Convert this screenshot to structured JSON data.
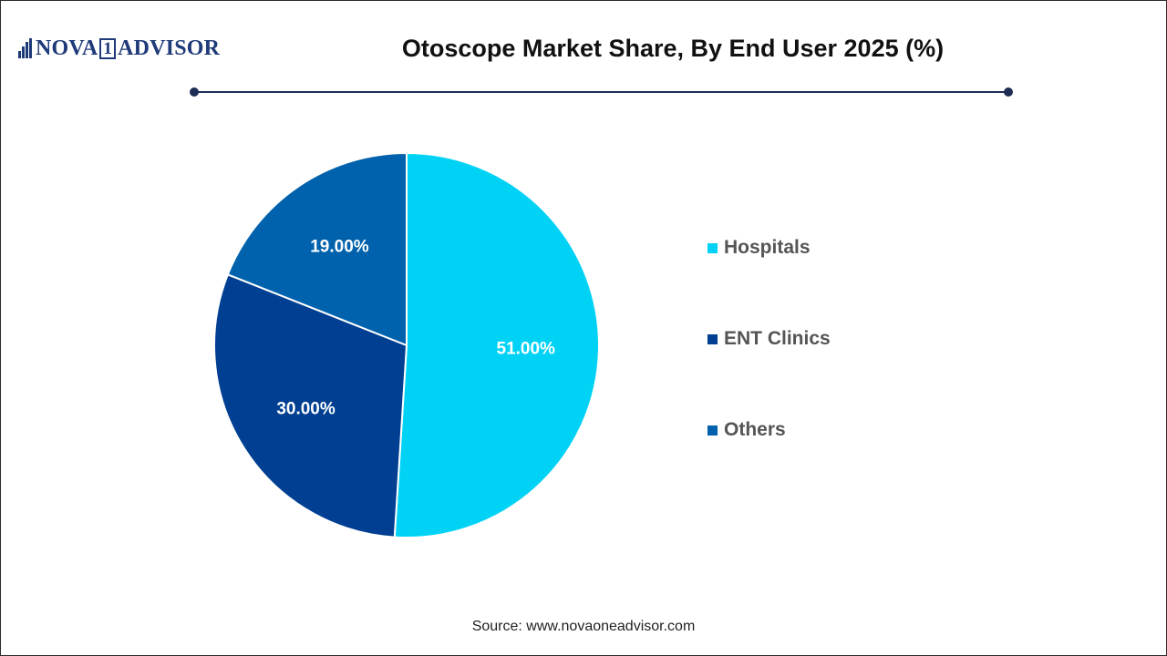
{
  "header": {
    "logo_text_left": "NOVA",
    "logo_text_box": "1",
    "logo_text_right": "ADVISOR",
    "title": "Otoscope Market Share, By End User 2025 (%)"
  },
  "chart_data": {
    "type": "pie",
    "title": "Otoscope Market Share, By End User 2025 (%)",
    "categories": [
      "Hospitals",
      "ENT Clinics",
      "Others"
    ],
    "values": [
      51.0,
      30.0,
      19.0
    ],
    "value_labels": [
      "51.00%",
      "30.00%",
      "19.00%"
    ],
    "unit": "%",
    "colors": [
      "#00d2f5",
      "#003f91",
      "#0062ad"
    ],
    "start": "12 o'clock, clockwise",
    "legend_position": "right"
  },
  "legend": {
    "items": [
      {
        "label": "Hospitals",
        "color": "#00d2f5"
      },
      {
        "label": "ENT Clinics",
        "color": "#003f91"
      },
      {
        "label": "Others",
        "color": "#0062ad"
      }
    ]
  },
  "footer": {
    "source": "Source: www.novaoneadvisor.com"
  },
  "colors": {
    "brand": "#1e3a78",
    "rule": "#1f2d55"
  }
}
